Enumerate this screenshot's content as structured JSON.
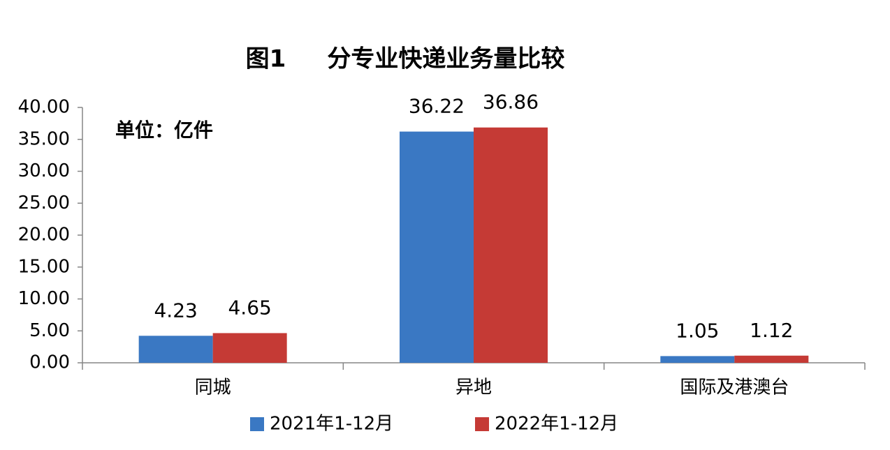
{
  "chart_data": {
    "type": "bar",
    "title": "图1     分专业快递业务量比较",
    "annotation": "单位：亿件",
    "categories": [
      "同城",
      "异地",
      "国际及港澳台"
    ],
    "series": [
      {
        "name": "2021年1-12月",
        "color": "#3a78c3",
        "values": [
          4.23,
          36.22,
          1.05
        ]
      },
      {
        "name": "2022年1-12月",
        "color": "#c53a35",
        "values": [
          4.65,
          36.86,
          1.12
        ]
      }
    ],
    "ylim": [
      0,
      40
    ],
    "yticks": [
      {
        "value": 0,
        "label": "0.00"
      },
      {
        "value": 5,
        "label": "5.00"
      },
      {
        "value": 10,
        "label": "10.00"
      },
      {
        "value": 15,
        "label": "15.00"
      },
      {
        "value": 20,
        "label": "20.00"
      },
      {
        "value": 25,
        "label": "25.00"
      },
      {
        "value": 30,
        "label": "30.00"
      },
      {
        "value": 35,
        "label": "35.00"
      },
      {
        "value": 40,
        "label": "40.00"
      }
    ],
    "grid": false
  }
}
